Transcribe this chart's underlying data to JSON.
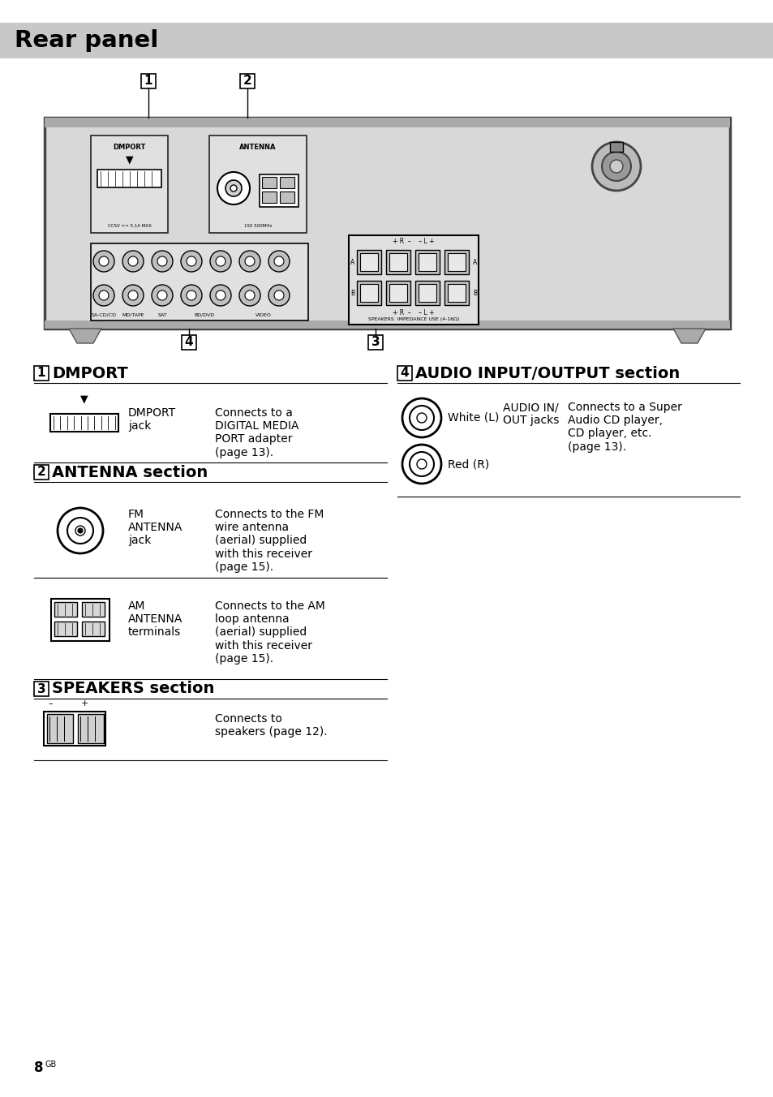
{
  "title": "Rear panel",
  "title_bg": "#c8c8c8",
  "page_bg": "#ffffff",
  "page_number": "8",
  "superscript": "GB",
  "section1_num": "1",
  "section1_title": "DMPORT",
  "section1_row1_label": "DMPORT\njack",
  "section1_row1_desc": "Connects to a\nDIGITAL MEDIA\nPORT adapter\n(page 13).",
  "section2_num": "2",
  "section2_title": "ANTENNA section",
  "section2_row1_label": "FM\nANTENNA\njack",
  "section2_row1_desc": "Connects to the FM\nwire antenna\n(aerial) supplied\nwith this receiver\n(page 15).",
  "section2_row2_label": "AM\nANTENNA\nterminals",
  "section2_row2_desc": "Connects to the AM\nloop antenna\n(aerial) supplied\nwith this receiver\n(page 15).",
  "section3_num": "3",
  "section3_title": "SPEAKERS section",
  "section3_row1_desc": "Connects to\nspeakers (page 12).",
  "section4_num": "4",
  "section4_title": "AUDIO INPUT/OUTPUT section",
  "section4_row1_label1": "White (L)",
  "section4_row1_label2": "AUDIO IN/\nOUT jacks",
  "section4_row1_desc": "Connects to a Super\nAudio CD player,\nCD player, etc.\n(page 13).",
  "section4_row2_label": "Red (R)",
  "panel_bg": "#d8d8d8",
  "panel_edge": "#333333"
}
